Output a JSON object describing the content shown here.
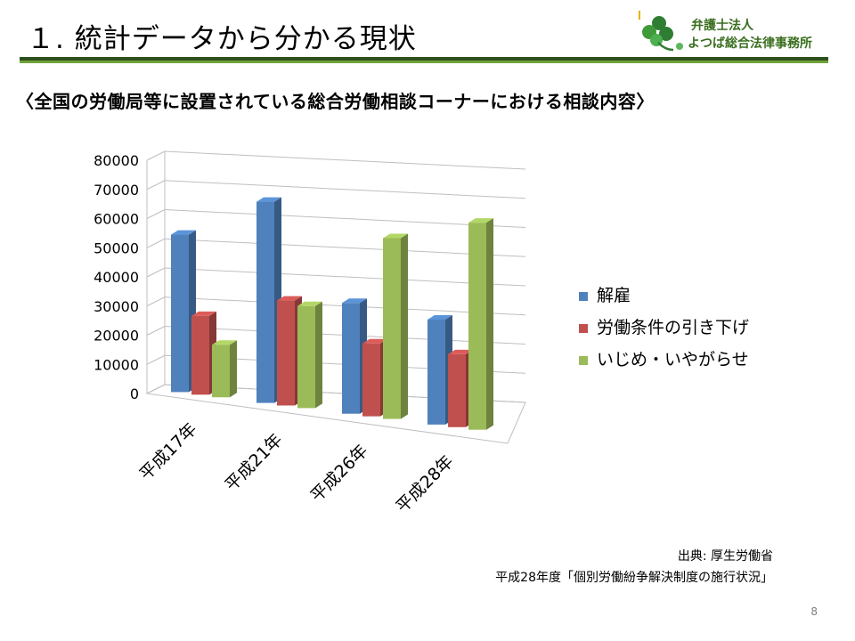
{
  "slide": {
    "title": "１. 統計データから分かる現状",
    "subtitle": "〈全国の労働局等に設置されている総合労働相談コーナーにおける相談内容〉",
    "page_number": "8"
  },
  "logo": {
    "line1": "弁護士法人",
    "line2": "よつば総合法律事務所"
  },
  "source": {
    "line1": "出典: 厚生労働省",
    "line2": "平成28年度「個別労働紛争解決制度の施行状況」"
  },
  "colors": {
    "accent_dark": "#2f4f1f",
    "accent_green": "#6fa43a",
    "logo_green": "#3a6e1f"
  },
  "chart_data": {
    "type": "bar",
    "style": "3d-clustered-column",
    "categories": [
      "平成17年",
      "平成21年",
      "平成26年",
      "平成28年"
    ],
    "series": [
      {
        "name": "解雇",
        "values": [
          54000,
          69000,
          38000,
          36000
        ],
        "color": "#4f81bd"
      },
      {
        "name": "労働条件の引き下げ",
        "values": [
          27000,
          36000,
          25000,
          25000
        ],
        "color": "#c0504d"
      },
      {
        "name": "いじめ・いやがらせ",
        "values": [
          18000,
          35000,
          62000,
          71000
        ],
        "color": "#9bbb59"
      }
    ],
    "yticks": [
      "0",
      "10000",
      "20000",
      "30000",
      "40000",
      "50000",
      "60000",
      "70000",
      "80000"
    ],
    "ylim": [
      0,
      80000
    ],
    "grid": true,
    "legend": "right",
    "title": "",
    "xlabel": "",
    "ylabel": ""
  }
}
